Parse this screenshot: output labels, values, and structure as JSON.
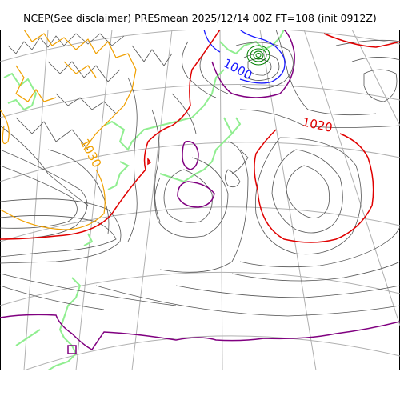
{
  "title": "NCEP(See disclaimer) PRESmean 2025/12/14 00Z FT=108 (init 0912Z)",
  "contour_labels": [
    {
      "text": "1000",
      "color": "#1a1aff"
    },
    {
      "text": "1020",
      "color": "#e00000"
    },
    {
      "text": "1030",
      "color": "#f0a000"
    }
  ],
  "colors": {
    "isobar": "#555555",
    "low_1000": "#1a1aff",
    "high_1020": "#e00000",
    "high_1030": "#f0a000",
    "contour_1010": "#800080",
    "coastline": "#90ee90",
    "graticule": "#b0b0b0",
    "low_center": "#008000"
  }
}
